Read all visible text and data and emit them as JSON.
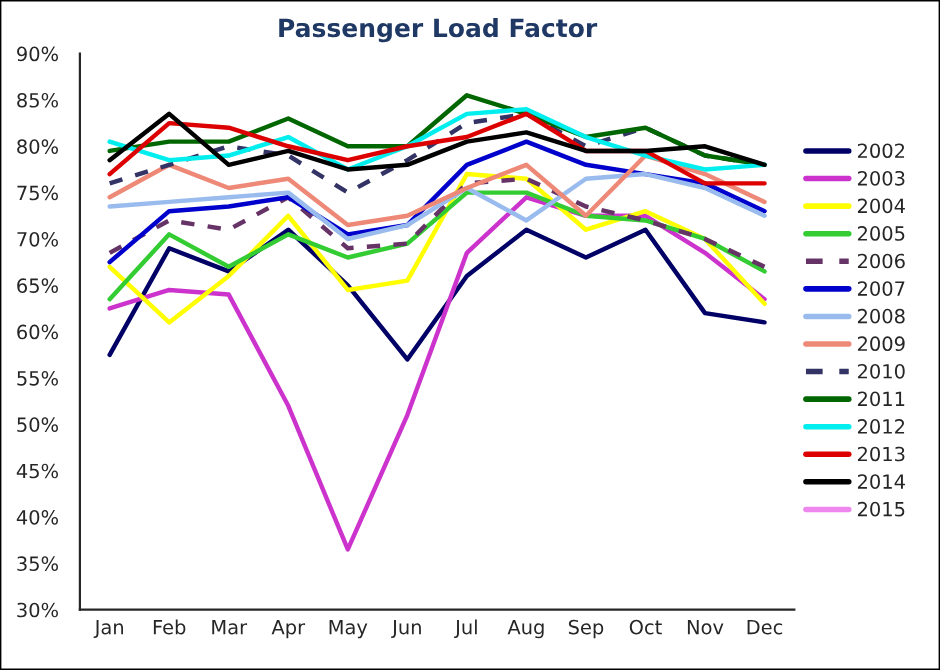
{
  "chart_data": {
    "type": "line",
    "title": "Passenger Load Factor",
    "categories": [
      "Jan",
      "Feb",
      "Mar",
      "Apr",
      "May",
      "Jun",
      "Jul",
      "Aug",
      "Sep",
      "Oct",
      "Nov",
      "Dec"
    ],
    "ylim": [
      30,
      90
    ],
    "yticks": [
      {
        "value": 30,
        "label": "30%"
      },
      {
        "value": 35,
        "label": "35%"
      },
      {
        "value": 40,
        "label": "40%"
      },
      {
        "value": 45,
        "label": "45%"
      },
      {
        "value": 50,
        "label": "50%"
      },
      {
        "value": 55,
        "label": "55%"
      },
      {
        "value": 60,
        "label": "60%"
      },
      {
        "value": 65,
        "label": "65%"
      },
      {
        "value": 70,
        "label": "70%"
      },
      {
        "value": 75,
        "label": "75%"
      },
      {
        "value": 80,
        "label": "80%"
      },
      {
        "value": 85,
        "label": "85%"
      },
      {
        "value": 90,
        "label": "90%"
      }
    ],
    "grid": false,
    "legend": "right",
    "marker": "none",
    "series": [
      {
        "name": "2002",
        "color": "#000066",
        "values": [
          57.5,
          69,
          66.5,
          71,
          65,
          57,
          66,
          71,
          68,
          71,
          62,
          61
        ]
      },
      {
        "name": "2003",
        "color": "#cc33cc",
        "values": [
          62.5,
          64.5,
          64,
          52,
          36.5,
          51,
          68.5,
          74.5,
          72.5,
          72.5,
          68.5,
          63.5
        ]
      },
      {
        "name": "2004",
        "color": "#ffff00",
        "values": [
          67,
          61,
          66,
          72.5,
          64.5,
          65.5,
          77,
          76.5,
          71,
          73,
          70,
          63
        ]
      },
      {
        "name": "2005",
        "color": "#33cc33",
        "values": [
          63.5,
          70.5,
          67,
          70.5,
          68,
          69.5,
          75,
          75,
          72.5,
          72,
          70,
          66.5
        ]
      },
      {
        "name": "2006",
        "color": "#663366",
        "line_style": "dashed",
        "values": [
          68.5,
          72,
          71,
          74.5,
          69,
          69.5,
          76,
          76.5,
          73.5,
          72,
          70,
          67
        ]
      },
      {
        "name": "2007",
        "color": "#0000cc",
        "values": [
          67.5,
          73,
          73.5,
          74.5,
          70.5,
          71.5,
          78,
          80.5,
          78,
          77,
          76,
          73
        ]
      },
      {
        "name": "2008",
        "color": "#99bbee",
        "values": [
          73.5,
          74,
          74.5,
          75,
          70,
          71.5,
          75.5,
          72,
          76.5,
          77,
          75.5,
          72.5
        ]
      },
      {
        "name": "2009",
        "color": "#ee8877",
        "values": [
          74.5,
          78,
          75.5,
          76.5,
          71.5,
          72.5,
          75.5,
          78,
          72.5,
          79,
          77,
          74
        ]
      },
      {
        "name": "2010",
        "color": "#333366",
        "line_style": "dashed",
        "values": [
          76,
          78,
          80,
          79,
          75,
          78.5,
          82.5,
          83.5,
          80,
          82,
          79,
          78
        ]
      },
      {
        "name": "2011",
        "color": "#006600",
        "values": [
          79.5,
          80.5,
          80.5,
          83,
          80,
          80,
          85.5,
          83.5,
          81,
          82,
          79,
          78
        ]
      },
      {
        "name": "2012",
        "color": "#00eeee",
        "values": [
          80.5,
          78.5,
          79,
          81,
          77.5,
          80,
          83.5,
          84,
          81,
          79,
          77.5,
          78
        ]
      },
      {
        "name": "2013",
        "color": "#dd0000",
        "values": [
          77,
          82.5,
          82,
          80,
          78.5,
          80,
          81,
          83.5,
          79.5,
          79.5,
          76,
          76
        ]
      },
      {
        "name": "2014",
        "color": "#000000",
        "values": [
          78.5,
          83.5,
          78,
          79.5,
          77.5,
          78,
          80.5,
          81.5,
          79.5,
          79.5,
          80,
          78
        ]
      },
      {
        "name": "2015",
        "color": "#ee88ee",
        "values": [
          null,
          null,
          null,
          null,
          null,
          null,
          null,
          null,
          null,
          null,
          null,
          null
        ]
      }
    ]
  }
}
